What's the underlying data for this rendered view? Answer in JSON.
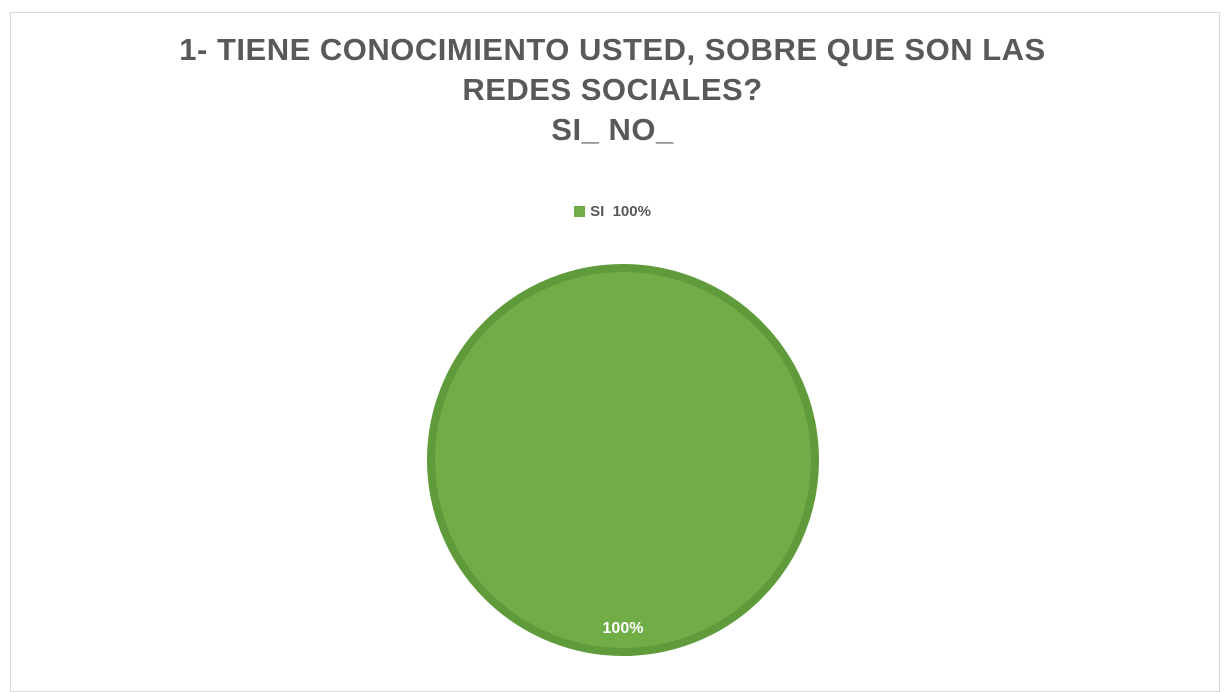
{
  "chart_data": {
    "type": "pie",
    "title_lines": [
      "1- TIENE CONOCIMIENTO USTED, SOBRE QUE SON LAS",
      "REDES SOCIALES?",
      "SI_ NO_"
    ],
    "categories": [
      "SI  100%"
    ],
    "values": [
      100
    ],
    "data_labels": [
      "100%"
    ],
    "colors": [
      "#70AD47"
    ],
    "edge_color": "#5F9A3B",
    "legend_position": "top"
  }
}
